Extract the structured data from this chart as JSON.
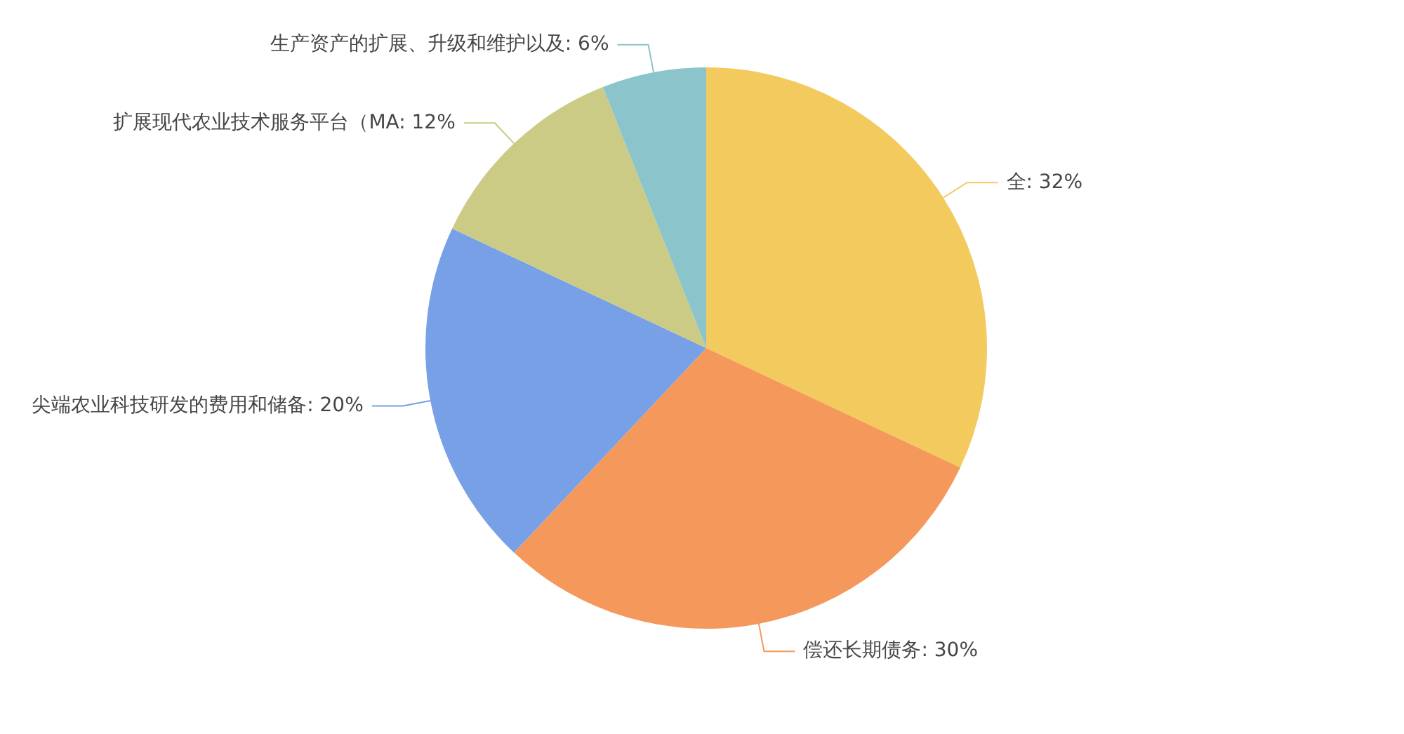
{
  "chart_data": {
    "type": "pie",
    "categories": [
      "全",
      "偿还长期债务",
      "尖端农业科技研发的费用和储备",
      "扩展现代农业技术服务平台（MA",
      "生产资产的扩展、升级和维护以及"
    ],
    "values": [
      32,
      30,
      20,
      12,
      6
    ],
    "colors": [
      "#f3ca5e",
      "#f4995b",
      "#77a0e6",
      "#cbcb85",
      "#8bc4cb"
    ],
    "value_labels": [
      "32%",
      "30%",
      "20%",
      "12%",
      "6%"
    ],
    "legend": false
  }
}
